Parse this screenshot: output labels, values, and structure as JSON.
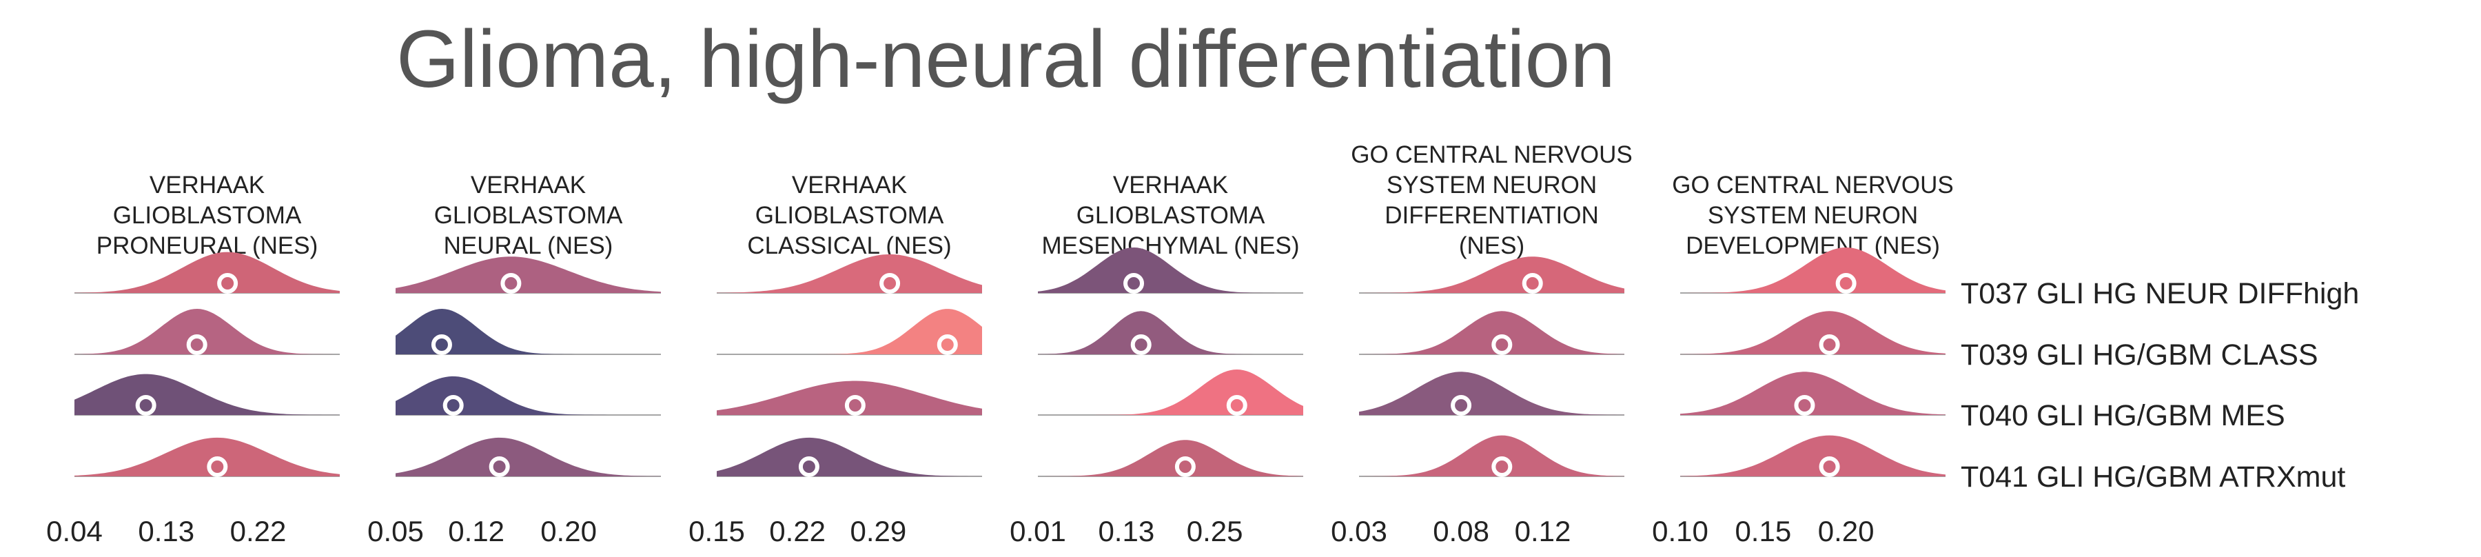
{
  "chart_data": {
    "type": "ridgeline",
    "title": "Glioma, high-neural differentiation",
    "rows": [
      "T037 GLI HG NEUR DIFFhigh",
      "T039 GLI HG/GBM CLASS",
      "T040 GLI HG/GBM MES",
      "T041 GLI HG/GBM ATRXmut"
    ],
    "panels": [
      {
        "title": [
          "VERHAAK",
          "GLIOBLASTOMA",
          "PRONEURAL (NES)"
        ],
        "xlim": [
          0.04,
          0.3
        ],
        "ticks": [
          0.04,
          0.13,
          0.22
        ],
        "tick_labels": [
          "0.04",
          "0.13",
          "0.22"
        ],
        "series": [
          {
            "median": 0.19,
            "sd": 0.045,
            "color": "#cf6577",
            "height": 0.9
          },
          {
            "median": 0.16,
            "sd": 0.035,
            "color": "#b66482",
            "height": 1.0
          },
          {
            "median": 0.11,
            "sd": 0.05,
            "color": "#6f5177",
            "height": 0.9
          },
          {
            "median": 0.18,
            "sd": 0.05,
            "color": "#cd6679",
            "height": 0.85
          }
        ]
      },
      {
        "title": [
          "VERHAAK",
          "GLIOBLASTOMA",
          "NEURAL (NES)"
        ],
        "xlim": [
          0.05,
          0.28
        ],
        "ticks": [
          0.05,
          0.12,
          0.2
        ],
        "tick_labels": [
          "0.05",
          "0.12",
          "0.20"
        ],
        "series": [
          {
            "median": 0.15,
            "sd": 0.05,
            "color": "#ad6181",
            "height": 0.8
          },
          {
            "median": 0.09,
            "sd": 0.03,
            "color": "#4d4c78",
            "height": 1.0
          },
          {
            "median": 0.1,
            "sd": 0.035,
            "color": "#544c7a",
            "height": 0.85
          },
          {
            "median": 0.14,
            "sd": 0.04,
            "color": "#8c5a7e",
            "height": 0.85
          }
        ]
      },
      {
        "title": [
          "VERHAAK",
          "GLIOBLASTOMA",
          "CLASSICAL (NES)"
        ],
        "xlim": [
          0.15,
          0.38
        ],
        "ticks": [
          0.15,
          0.22,
          0.29
        ],
        "tick_labels": [
          "0.15",
          "0.22",
          "0.29"
        ],
        "series": [
          {
            "median": 0.3,
            "sd": 0.045,
            "color": "#d96a7b",
            "height": 0.85
          },
          {
            "median": 0.35,
            "sd": 0.03,
            "color": "#f38282",
            "height": 1.0
          },
          {
            "median": 0.27,
            "sd": 0.06,
            "color": "#b96380",
            "height": 0.75
          },
          {
            "median": 0.23,
            "sd": 0.04,
            "color": "#775479",
            "height": 0.85
          }
        ]
      },
      {
        "title": [
          "VERHAAK",
          "GLIOBLASTOMA",
          "MESENCHYMAL (NES)"
        ],
        "xlim": [
          0.01,
          0.37
        ],
        "ticks": [
          0.01,
          0.13,
          0.25
        ],
        "tick_labels": [
          "0.01",
          "0.13",
          "0.25"
        ],
        "series": [
          {
            "median": 0.14,
            "sd": 0.05,
            "color": "#7c5479",
            "height": 1.0
          },
          {
            "median": 0.15,
            "sd": 0.04,
            "color": "#925b7e",
            "height": 0.95
          },
          {
            "median": 0.28,
            "sd": 0.05,
            "color": "#ef7282",
            "height": 1.0
          },
          {
            "median": 0.21,
            "sd": 0.05,
            "color": "#c36479",
            "height": 0.8
          }
        ]
      },
      {
        "title": [
          "GO CENTRAL NERVOUS",
          "SYSTEM NEURON",
          "DIFFERENTIATION",
          "(NES)"
        ],
        "xlim": [
          0.03,
          0.16
        ],
        "ticks": [
          0.03,
          0.08,
          0.12
        ],
        "tick_labels": [
          "0.03",
          "0.08",
          "0.12"
        ],
        "series": [
          {
            "median": 0.115,
            "sd": 0.022,
            "color": "#d66779",
            "height": 0.8
          },
          {
            "median": 0.1,
            "sd": 0.018,
            "color": "#b7627f",
            "height": 0.95
          },
          {
            "median": 0.08,
            "sd": 0.022,
            "color": "#895a7e",
            "height": 0.95
          },
          {
            "median": 0.1,
            "sd": 0.018,
            "color": "#c8657c",
            "height": 0.9
          }
        ]
      },
      {
        "title": [
          "GO CENTRAL NERVOUS",
          "SYSTEM NEURON",
          "DEVELOPMENT (NES)"
        ],
        "xlim": [
          0.1,
          0.26
        ],
        "ticks": [
          0.1,
          0.15,
          0.2
        ],
        "tick_labels": [
          "0.10",
          "0.15",
          "0.20"
        ],
        "series": [
          {
            "median": 0.2,
            "sd": 0.025,
            "color": "#e36b7b",
            "height": 1.0
          },
          {
            "median": 0.19,
            "sd": 0.025,
            "color": "#c7647d",
            "height": 0.95
          },
          {
            "median": 0.175,
            "sd": 0.028,
            "color": "#bf6380",
            "height": 0.95
          },
          {
            "median": 0.19,
            "sd": 0.028,
            "color": "#cf667c",
            "height": 0.9
          }
        ]
      }
    ]
  }
}
